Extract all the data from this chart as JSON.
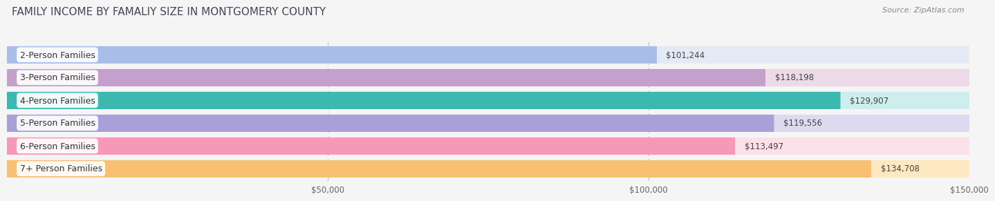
{
  "title": "FAMILY INCOME BY FAMALIY SIZE IN MONTGOMERY COUNTY",
  "source": "Source: ZipAtlas.com",
  "categories": [
    "2-Person Families",
    "3-Person Families",
    "4-Person Families",
    "5-Person Families",
    "6-Person Families",
    "7+ Person Families"
  ],
  "values": [
    101244,
    118198,
    129907,
    119556,
    113497,
    134708
  ],
  "labels": [
    "$101,244",
    "$118,198",
    "$129,907",
    "$119,556",
    "$113,497",
    "$134,708"
  ],
  "bar_colors": [
    "#aabde8",
    "#c4a0cc",
    "#3db8b0",
    "#a8a0d8",
    "#f898b8",
    "#f8c070"
  ],
  "bar_bg_colors": [
    "#e4eaf5",
    "#ecdae8",
    "#cdeeed",
    "#dddaf0",
    "#fce0e8",
    "#fde8c0"
  ],
  "xlim_max": 150000,
  "xtick_vals": [
    50000,
    100000,
    150000
  ],
  "xtick_labels": [
    "$50,000",
    "$100,000",
    "$150,000"
  ],
  "bg_color": "#f5f5f5",
  "bar_height": 0.75,
  "bar_gap": 0.25,
  "title_fontsize": 11,
  "source_fontsize": 8,
  "label_fontsize": 8.5,
  "cat_fontsize": 9
}
